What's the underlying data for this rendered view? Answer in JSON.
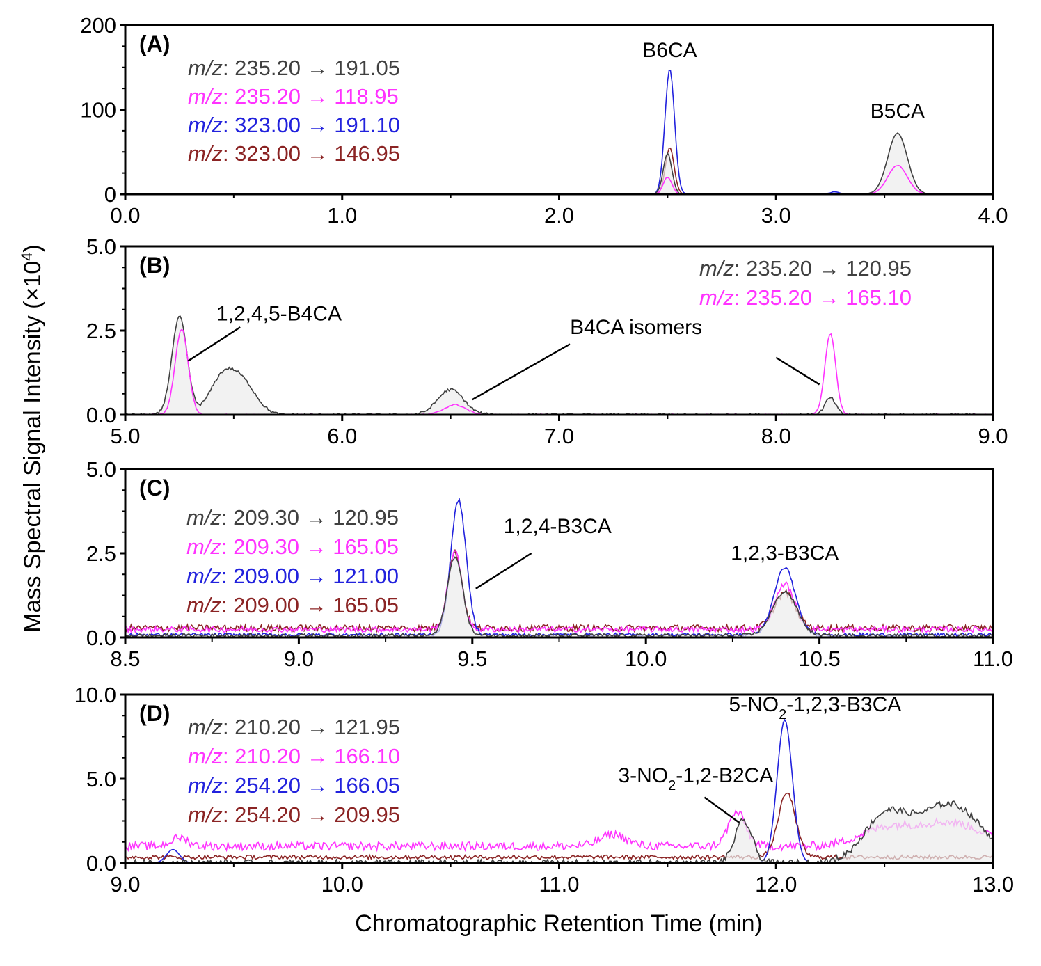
{
  "chart_data": {
    "type": "line",
    "figure": {
      "ylabel": "Mass Spectral Signal Intensity (×10",
      "ylabel_sup": "4",
      "ylabel_end": ")",
      "xlabel": "Chromatographic Retention Time (min)"
    },
    "colors": {
      "black": "#404040",
      "magenta": "#ff33ff",
      "blue": "#2222dd",
      "brown": "#8b2424"
    },
    "panels": [
      {
        "id": "A",
        "label": "(A)",
        "xlim": [
          0.0,
          4.0
        ],
        "ylim": [
          0,
          200
        ],
        "xticks": [
          "0.0",
          "1.0",
          "2.0",
          "3.0",
          "4.0"
        ],
        "yticks": [
          "0",
          "100",
          "200"
        ],
        "legend": [
          {
            "mz": "m/z",
            "rest": ": 235.20 → 191.05",
            "color": "black"
          },
          {
            "mz": "m/z",
            "rest": ": 235.20 → 118.95",
            "color": "magenta"
          },
          {
            "mz": "m/z",
            "rest": ": 323.00 → 191.10",
            "color": "blue"
          },
          {
            "mz": "m/z",
            "rest": ": 323.00 → 146.95",
            "color": "brown"
          }
        ],
        "series": [
          {
            "color": "blue",
            "peaks": [
              [
                2.51,
                148,
                0.022
              ],
              [
                3.27,
                3,
                0.02
              ]
            ],
            "noise": 0.3,
            "fill": false
          },
          {
            "color": "brown",
            "peaks": [
              [
                2.51,
                55,
                0.02
              ]
            ],
            "noise": 0.3,
            "fill": false
          },
          {
            "color": "black",
            "peaks": [
              [
                2.5,
                48,
                0.02
              ],
              [
                3.56,
                72,
                0.045
              ]
            ],
            "noise": 0.3,
            "fill": true
          },
          {
            "color": "magenta",
            "peaks": [
              [
                2.5,
                20,
                0.02
              ],
              [
                3.56,
                34,
                0.045
              ]
            ],
            "noise": 0.3,
            "fill": false
          }
        ],
        "annotations": [
          {
            "text": "B6CA",
            "x": 2.51,
            "y": 162,
            "anchor": "middle"
          },
          {
            "text": "B5CA",
            "x": 3.56,
            "y": 90,
            "anchor": "middle"
          }
        ]
      },
      {
        "id": "B",
        "label": "(B)",
        "xlim": [
          5.0,
          9.0
        ],
        "ylim": [
          0,
          5.0
        ],
        "xticks": [
          "5.0",
          "6.0",
          "7.0",
          "8.0",
          "9.0"
        ],
        "yticks": [
          "0.0",
          "2.5",
          "5.0"
        ],
        "legend_position": "top-right",
        "legend": [
          {
            "mz": "m/z",
            "rest": ": 235.20 → 120.95",
            "color": "black"
          },
          {
            "mz": "m/z",
            "rest": ": 235.20 → 165.10",
            "color": "magenta"
          }
        ],
        "series": [
          {
            "color": "black",
            "peaks": [
              [
                5.25,
                2.9,
                0.035
              ],
              [
                5.45,
                1.1,
                0.06
              ],
              [
                5.55,
                0.8,
                0.06
              ],
              [
                6.5,
                0.75,
                0.06
              ],
              [
                8.25,
                0.5,
                0.025
              ]
            ],
            "noise": 0.04,
            "fill": true
          },
          {
            "color": "magenta",
            "peaks": [
              [
                5.26,
                2.55,
                0.03
              ],
              [
                6.52,
                0.3,
                0.05
              ],
              [
                8.25,
                2.4,
                0.025
              ]
            ],
            "noise": 0.02,
            "fill": false
          }
        ],
        "annotations": [
          {
            "text": "1,2,4,5-B4CA",
            "x": 5.42,
            "y": 2.8,
            "anchor": "start",
            "line": [
              [
                5.53,
                2.6
              ],
              [
                5.29,
                1.6
              ]
            ]
          },
          {
            "text": "B4CA isomers",
            "x": 7.05,
            "y": 2.4,
            "anchor": "start",
            "lines": [
              [
                [
                  7.05,
                  2.1
                ],
                [
                  6.6,
                  0.45
                ]
              ],
              [
                [
                  8.0,
                  1.7
                ],
                [
                  8.2,
                  0.9
                ]
              ]
            ]
          }
        ]
      },
      {
        "id": "C",
        "label": "(C)",
        "xlim": [
          8.5,
          11.0
        ],
        "ylim": [
          0,
          5.0
        ],
        "xticks": [
          "8.5",
          "9.0",
          "9.5",
          "10.0",
          "10.5",
          "11.0"
        ],
        "yticks": [
          "0.0",
          "2.5",
          "5.0"
        ],
        "legend": [
          {
            "mz": "m/z",
            "rest": ": 209.30 → 120.95",
            "color": "black"
          },
          {
            "mz": "m/z",
            "rest": ": 209.30 → 165.05",
            "color": "magenta"
          },
          {
            "mz": "m/z",
            "rest": ": 209.00 → 121.00",
            "color": "blue"
          },
          {
            "mz": "m/z",
            "rest": ": 209.00 → 165.05",
            "color": "brown"
          }
        ],
        "series": [
          {
            "color": "brown",
            "peaks": [
              [
                9.45,
                2.25,
                0.02
              ],
              [
                10.4,
                1.05,
                0.03
              ]
            ],
            "noise": 0.1,
            "base": 0.28,
            "fill": false
          },
          {
            "color": "magenta",
            "peaks": [
              [
                9.45,
                2.3,
                0.02
              ],
              [
                10.4,
                1.35,
                0.028
              ]
            ],
            "noise": 0.08,
            "base": 0.24,
            "fill": false
          },
          {
            "color": "blue",
            "peaks": [
              [
                9.46,
                4.0,
                0.022
              ],
              [
                10.4,
                2.0,
                0.03
              ]
            ],
            "noise": 0.05,
            "base": 0.08,
            "fill": false
          },
          {
            "color": "black",
            "peaks": [
              [
                9.45,
                2.35,
                0.022
              ],
              [
                10.4,
                1.3,
                0.035
              ]
            ],
            "noise": 0.05,
            "base": 0.06,
            "fill": true
          }
        ],
        "annotations": [
          {
            "text": "1,2,4-B3CA",
            "x": 9.59,
            "y": 3.1,
            "anchor": "start",
            "line": [
              [
                9.67,
                2.5
              ],
              [
                9.51,
                1.45
              ]
            ]
          },
          {
            "text": "1,2,3-B3CA",
            "x": 10.4,
            "y": 2.3,
            "anchor": "middle"
          }
        ]
      },
      {
        "id": "D",
        "label": "(D)",
        "xlim": [
          9.0,
          13.0
        ],
        "ylim": [
          0,
          10.0
        ],
        "xticks": [
          "9.0",
          "10.0",
          "11.0",
          "12.0",
          "13.0"
        ],
        "yticks": [
          "0.0",
          "5.0",
          "10.0"
        ],
        "legend": [
          {
            "mz": "m/z",
            "rest": ": 210.20 → 121.95",
            "color": "black"
          },
          {
            "mz": "m/z",
            "rest": ": 210.20 → 166.10",
            "color": "magenta"
          },
          {
            "mz": "m/z",
            "rest": ": 254.20 → 166.05",
            "color": "blue"
          },
          {
            "mz": "m/z",
            "rest": ": 254.20 → 209.95",
            "color": "brown"
          }
        ],
        "series": [
          {
            "color": "magenta",
            "peaks": [
              [
                9.25,
                0.5,
                0.04
              ],
              [
                11.25,
                0.7,
                0.06
              ],
              [
                11.82,
                2.0,
                0.04
              ],
              [
                12.5,
                1.0,
                0.12
              ],
              [
                12.8,
                1.4,
                0.15
              ]
            ],
            "noise": 0.25,
            "base": 1.0,
            "fill": false
          },
          {
            "color": "brown",
            "peaks": [
              [
                12.05,
                3.8,
                0.04
              ]
            ],
            "noise": 0.12,
            "base": 0.35,
            "fill": false
          },
          {
            "color": "blue",
            "peaks": [
              [
                9.22,
                0.8,
                0.03
              ],
              [
                12.04,
                8.5,
                0.035
              ]
            ],
            "noise": 0.0,
            "base": 0.0,
            "fill": false
          },
          {
            "color": "black",
            "peaks": [
              [
                11.85,
                2.5,
                0.04
              ],
              [
                12.5,
                2.6,
                0.1
              ],
              [
                12.8,
                3.5,
                0.15
              ]
            ],
            "noise": 0.2,
            "base": 0.0,
            "fill": true
          }
        ],
        "annotations": [
          {
            "text": "5-NO",
            "sub": "2",
            "rest": "-1,2,3-B3CA",
            "x": 12.18,
            "y": 9.0,
            "anchor": "middle"
          },
          {
            "text": "3-NO",
            "sub": "2",
            "rest": "-1,2-B2CA",
            "x": 11.63,
            "y": 4.8,
            "anchor": "middle",
            "line": [
              [
                11.67,
                3.9
              ],
              [
                11.83,
                2.4
              ]
            ]
          }
        ]
      }
    ]
  }
}
